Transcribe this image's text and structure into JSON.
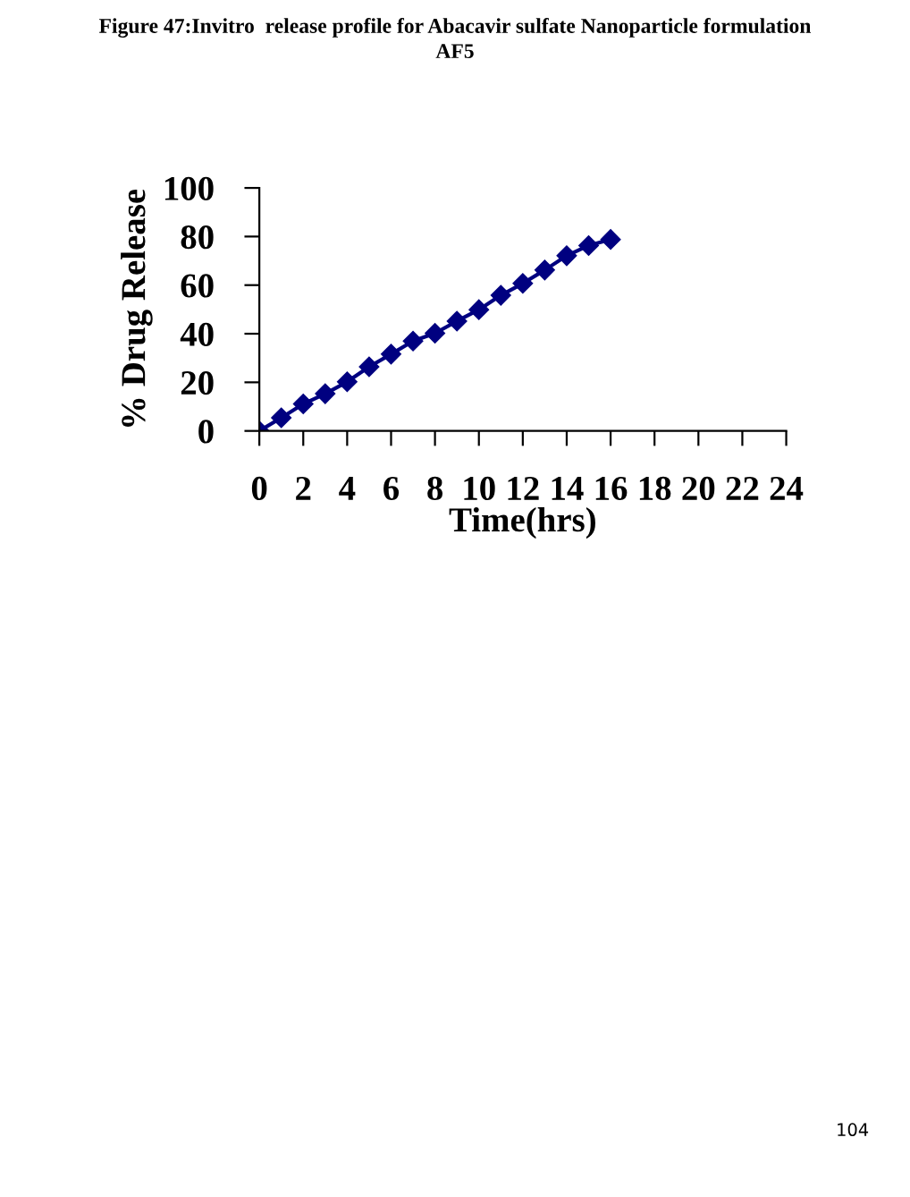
{
  "chart_data": {
    "type": "line",
    "title": "Figure 47:Invitro  release profile for Abacavir sulfate Nanoparticle formulation\nAF5",
    "xlabel": "Time(hrs)",
    "ylabel": "% Drug Release",
    "x": [
      0,
      1,
      2,
      3,
      4,
      5,
      6,
      7,
      8,
      9,
      10,
      11,
      12,
      13,
      14,
      15,
      16
    ],
    "series": [
      {
        "color": "#000080",
        "values": [
          0,
          5.4,
          11.1,
          15.3,
          20.2,
          26.4,
          31.6,
          37.0,
          40.2,
          45.2,
          49.9,
          55.8,
          60.7,
          66.2,
          72.1,
          76.3,
          78.8
        ]
      }
    ],
    "xlim": [
      0,
      24
    ],
    "xticks": [
      0,
      2,
      4,
      6,
      8,
      10,
      12,
      14,
      16,
      18,
      20,
      22,
      24
    ],
    "ylim": [
      0,
      100
    ],
    "yticks": [
      0,
      20,
      40,
      60,
      80,
      100
    ],
    "grid": false,
    "marker": "diamond",
    "line_style": "solid",
    "annotations": [
      "104"
    ]
  }
}
